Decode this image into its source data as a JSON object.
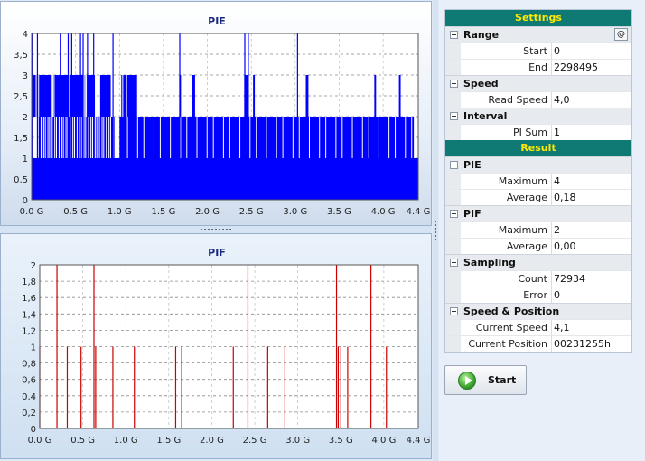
{
  "chart_data": [
    {
      "type": "bar",
      "title": "PIE",
      "color": "#0000ff",
      "ylim": [
        0,
        4
      ],
      "y_ticks": [
        "4",
        "3,5",
        "3",
        "2,5",
        "2",
        "1,5",
        "1",
        "0,5",
        "0"
      ],
      "x_ticks": [
        "0.0 G",
        "0.5 G",
        "1.0 G",
        "1.5 G",
        "2.0 G",
        "2.5 G",
        "3.0 G",
        "3.5 G",
        "4.0 G",
        "4.4 G"
      ],
      "xlim": [
        0,
        4.4
      ],
      "fill_level": 1,
      "level2_ranges": [
        [
          0.08,
          0.95
        ],
        [
          1.0,
          4.35
        ]
      ],
      "level3_ranges": [
        [
          0.0,
          0.72
        ],
        [
          0.78,
          0.9
        ],
        [
          1.02,
          1.2
        ],
        [
          1.68,
          1.7
        ],
        [
          1.83,
          1.86
        ],
        [
          2.42,
          2.46
        ],
        [
          2.52,
          2.54
        ],
        [
          3.12,
          3.15
        ],
        [
          3.9,
          3.92
        ],
        [
          4.18,
          4.2
        ]
      ],
      "spikes_4": [
        0.0,
        0.06,
        0.32,
        0.41,
        0.45,
        0.55,
        0.58,
        0.63,
        0.7,
        0.92,
        1.68,
        2.42,
        2.46,
        3.02
      ]
    },
    {
      "type": "bar",
      "title": "PIF",
      "color": "#cc0000",
      "ylim": [
        0,
        2
      ],
      "y_ticks": [
        "2",
        "1,8",
        "1,6",
        "1,4",
        "1,2",
        "1",
        "0,8",
        "0,6",
        "0,4",
        "0,2",
        "0"
      ],
      "x_ticks": [
        "0.0 G",
        "0.5 G",
        "1.0 G",
        "1.5 G",
        "2.0 G",
        "2.5 G",
        "3.0 G",
        "3.5 G",
        "4.0 G",
        "4.4 G"
      ],
      "xlim": [
        0,
        4.4
      ],
      "spikes": [
        {
          "x": 0.0,
          "y": 1
        },
        {
          "x": 0.2,
          "y": 2
        },
        {
          "x": 0.32,
          "y": 1
        },
        {
          "x": 0.48,
          "y": 1
        },
        {
          "x": 0.63,
          "y": 2
        },
        {
          "x": 0.65,
          "y": 1
        },
        {
          "x": 0.85,
          "y": 1
        },
        {
          "x": 1.1,
          "y": 1
        },
        {
          "x": 1.58,
          "y": 1
        },
        {
          "x": 1.65,
          "y": 1
        },
        {
          "x": 2.25,
          "y": 1
        },
        {
          "x": 2.42,
          "y": 2
        },
        {
          "x": 2.65,
          "y": 1
        },
        {
          "x": 2.85,
          "y": 1
        },
        {
          "x": 3.45,
          "y": 2
        },
        {
          "x": 3.47,
          "y": 1
        },
        {
          "x": 3.5,
          "y": 1
        },
        {
          "x": 3.58,
          "y": 1
        },
        {
          "x": 3.85,
          "y": 2
        },
        {
          "x": 4.03,
          "y": 1
        }
      ]
    }
  ],
  "panel": {
    "settings_header": "Settings",
    "result_header": "Result",
    "range_cat": "Range",
    "range_button": "@",
    "start_label": "Start",
    "start_value": "0",
    "end_label": "End",
    "end_value": "2298495",
    "speed_cat": "Speed",
    "read_speed_label": "Read Speed",
    "read_speed_value": "4,0",
    "interval_cat": "Interval",
    "pi_sum_label": "PI Sum",
    "pi_sum_value": "1",
    "pie_cat": "PIE",
    "pie_max_label": "Maximum",
    "pie_max_value": "4",
    "pie_avg_label": "Average",
    "pie_avg_value": "0,18",
    "pif_cat": "PIF",
    "pif_max_label": "Maximum",
    "pif_max_value": "2",
    "pif_avg_label": "Average",
    "pif_avg_value": "0,00",
    "sampling_cat": "Sampling",
    "count_label": "Count",
    "count_value": "72934",
    "error_label": "Error",
    "error_value": "0",
    "sp_cat": "Speed & Position",
    "cur_speed_label": "Current Speed",
    "cur_speed_value": "4,1",
    "cur_pos_label": "Current Position",
    "cur_pos_value": "00231255h"
  },
  "start_button_label": "Start",
  "icons": {
    "start": "play-icon",
    "collapse": "minus-icon"
  }
}
